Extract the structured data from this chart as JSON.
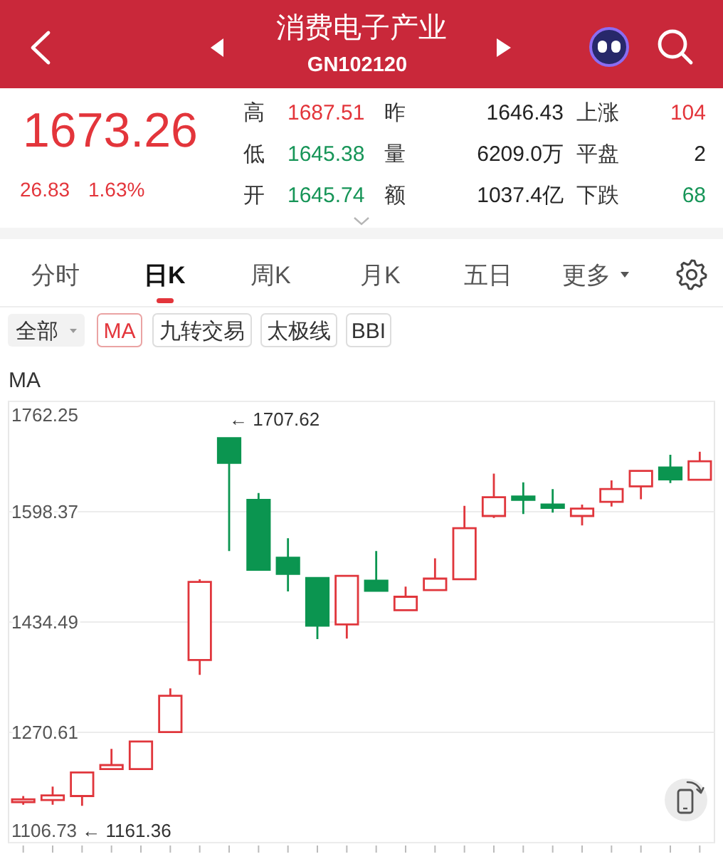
{
  "chart_data": {
    "type": "candlestick",
    "title": "消费电子产业",
    "subtitle": "GN102120",
    "categories": [
      null,
      null,
      null,
      null,
      null,
      null,
      null,
      null,
      null,
      null,
      null,
      null,
      null,
      null,
      null,
      null,
      null,
      null,
      null,
      null,
      null,
      null,
      null,
      null
    ],
    "ohlc": [
      [
        1167,
        1176,
        1163,
        1171
      ],
      [
        1170,
        1190,
        1163,
        1177
      ],
      [
        1176,
        1211,
        1161.36,
        1211
      ],
      [
        1216,
        1246,
        1216,
        1222
      ],
      [
        1216,
        1257,
        1216,
        1257
      ],
      [
        1271,
        1336,
        1271,
        1325
      ],
      [
        1378,
        1498,
        1356,
        1494
      ],
      [
        1707.62,
        1707.62,
        1540,
        1671
      ],
      [
        1616,
        1626,
        1511,
        1512
      ],
      [
        1530,
        1559,
        1480,
        1506
      ],
      [
        1500,
        1500,
        1409,
        1429
      ],
      [
        1431,
        1503,
        1410,
        1503
      ],
      [
        1496,
        1540,
        1481,
        1481
      ],
      [
        1452,
        1487,
        1452,
        1472
      ],
      [
        1482,
        1529,
        1482,
        1499
      ],
      [
        1498,
        1607,
        1498,
        1574
      ],
      [
        1592,
        1655,
        1589,
        1620
      ],
      [
        1621,
        1642,
        1595,
        1616
      ],
      [
        1609,
        1632,
        1597,
        1604
      ],
      [
        1592,
        1609,
        1578,
        1603
      ],
      [
        1613,
        1645,
        1606,
        1632
      ],
      [
        1636,
        1659,
        1617,
        1659
      ],
      [
        1664,
        1683,
        1641,
        1646.43
      ],
      [
        1645.74,
        1687.51,
        1645.38,
        1673.26
      ]
    ],
    "colors": [
      "#e0363c",
      "#e0363c",
      "#e0363c",
      "#e0363c",
      "#e0363c",
      "#e0363c",
      "#e0363c",
      "#0b9550",
      "#0b9550",
      "#0b9550",
      "#0b9550",
      "#e0363c",
      "#0b9550",
      "#e0363c",
      "#e0363c",
      "#e0363c",
      "#e0363c",
      "#0b9550",
      "#0b9550",
      "#e0363c",
      "#e0363c",
      "#e0363c",
      "#0b9550",
      "#e0363c"
    ],
    "ylim": [
      1106.73,
      1762.25
    ],
    "yticks": [
      1106.73,
      1270.61,
      1434.49,
      1598.37,
      1762.25
    ],
    "grid": "y",
    "tick_labels": "y",
    "annotations": [
      "1673.26",
      "26.83",
      "1.63%",
      "高",
      "1687.51",
      "昨",
      "1646.43",
      "上涨",
      "104",
      "低",
      "1645.38",
      "量",
      "6209.0万",
      "平盘",
      "2",
      "开",
      "1645.74",
      "额",
      "1037.4亿",
      "下跌",
      "68",
      "分时",
      "日K",
      "周K",
      "月K",
      "五日",
      "更多",
      "全部",
      "MA",
      "九转交易",
      "太极线",
      "BBI",
      "MA",
      "← 1707.62",
      "← 1161.36"
    ]
  }
}
